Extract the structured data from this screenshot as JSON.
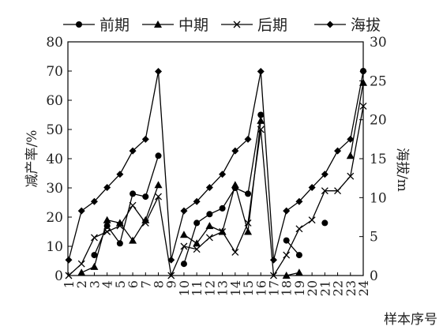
{
  "chart_data": {
    "type": "line",
    "title": "",
    "xlabel": "样本序号",
    "ylabel": "减产率/%",
    "y2label": "海拔/m",
    "ylim": [
      0,
      80
    ],
    "yticks": [
      0,
      10,
      20,
      30,
      40,
      50,
      60,
      70,
      80
    ],
    "y2lim": [
      0,
      30
    ],
    "y2ticks": [
      0,
      5,
      10,
      15,
      20,
      25,
      30
    ],
    "x": [
      "1",
      "2",
      "3",
      "4",
      "5",
      "6",
      "7",
      "8",
      "9",
      "10",
      "11",
      "12",
      "13",
      "14",
      "15",
      "16",
      "17",
      "18",
      "19",
      "20",
      "21",
      "22",
      "23",
      "24"
    ],
    "legend_position": "top",
    "series": [
      {
        "name": "前期",
        "marker": "circle",
        "axis": "left",
        "color": "#000000",
        "values": [
          null,
          null,
          7,
          17,
          11,
          28,
          27,
          41,
          null,
          4,
          18,
          21,
          23,
          30,
          28,
          55,
          null,
          12,
          7,
          null,
          18,
          null,
          null,
          70
        ]
      },
      {
        "name": "中期",
        "marker": "triangle",
        "axis": "left",
        "color": "#000000",
        "values": [
          null,
          1,
          3,
          19,
          18,
          12,
          19,
          31,
          null,
          14,
          11,
          17,
          15,
          31,
          15,
          53,
          null,
          0,
          1,
          null,
          null,
          null,
          41,
          66
        ]
      },
      {
        "name": "后期",
        "marker": "x",
        "axis": "left",
        "color": "#000000",
        "values": [
          0,
          4,
          13,
          15,
          17,
          24,
          18,
          27,
          0,
          10,
          9,
          13,
          15,
          8,
          18,
          50,
          0,
          7,
          16,
          19,
          29,
          29,
          34,
          58
        ]
      },
      {
        "name": "海拔",
        "marker": "diamond",
        "axis": "right",
        "color": "#000000",
        "values": [
          2,
          8.3,
          9.5,
          11.3,
          13,
          16,
          17.5,
          26.2,
          2,
          8.3,
          9.5,
          11.3,
          13,
          16,
          17.5,
          26.2,
          2,
          8.3,
          9.5,
          11.3,
          13,
          16,
          17.5,
          26.2
        ]
      }
    ]
  }
}
